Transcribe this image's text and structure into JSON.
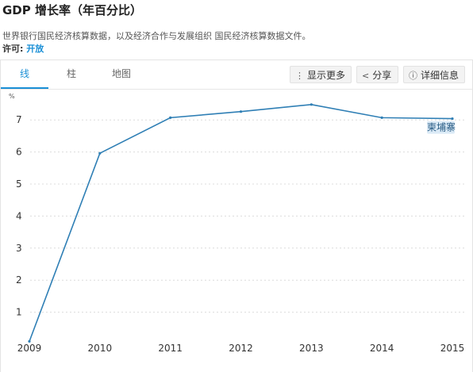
{
  "header": {
    "title": "GDP 增长率（年百分比）",
    "description": "世界银行国民经济核算数据，以及经济合作与发展组织 国民经济核算数据文件。",
    "license_label": "许可:",
    "license_value": "开放"
  },
  "tabs": [
    {
      "label": "线",
      "active": true
    },
    {
      "label": "柱",
      "active": false
    },
    {
      "label": "地图",
      "active": false
    }
  ],
  "toolbar": {
    "more_label": "显示更多",
    "share_label": "分享",
    "details_label": "详细信息"
  },
  "colors": {
    "accent": "#1a8fd6",
    "series": "#2f7fb5"
  },
  "chart_data": {
    "type": "line",
    "ylabel": "%",
    "ylim": [
      0,
      8
    ],
    "yticks": [
      1,
      2,
      3,
      4,
      5,
      6,
      7
    ],
    "x": [
      "2009",
      "2010",
      "2011",
      "2012",
      "2013",
      "2014",
      "2015"
    ],
    "series": [
      {
        "name": "柬埔寨",
        "values": [
          0.09,
          5.96,
          7.07,
          7.26,
          7.48,
          7.07,
          7.04
        ]
      }
    ],
    "grid": true
  }
}
